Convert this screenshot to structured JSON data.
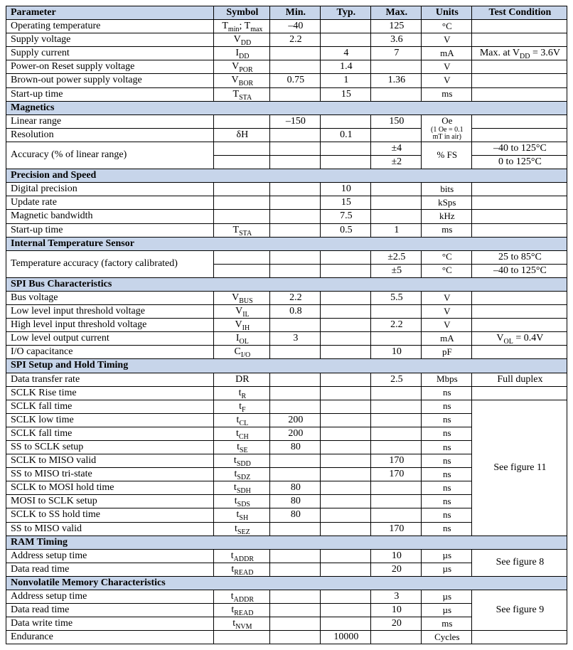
{
  "colors": {
    "header_bg": "#c7d5ea",
    "border": "#000000",
    "text": "#000000",
    "page_bg": "#ffffff"
  },
  "headers": {
    "parameter": "Parameter",
    "symbol": "Symbol",
    "min": "Min.",
    "typ": "Typ.",
    "max": "Max.",
    "units": "Units",
    "test": "Test Condition"
  },
  "sections": {
    "top": {
      "rows": [
        {
          "param": "Operating temperature",
          "sym": "T<sub>min</sub>; T<sub>max</sub>",
          "min": "–40",
          "typ": "",
          "max": "125",
          "units": "°C",
          "test": ""
        },
        {
          "param": "Supply voltage",
          "sym": "V<sub>DD</sub>",
          "min": "2.2",
          "typ": "",
          "max": "3.6",
          "units": "V",
          "test": ""
        },
        {
          "param": "Supply current",
          "sym": "I<sub>DD</sub>",
          "min": "",
          "typ": "4",
          "max": "7",
          "units": "mA",
          "test": "Max. at V<sub>DD</sub> = 3.6V"
        },
        {
          "param": "Power-on Reset supply voltage",
          "sym": "V<sub>POR</sub>",
          "min": "",
          "typ": "1.4",
          "max": "",
          "units": "V",
          "test": ""
        },
        {
          "param": "Brown-out power supply voltage",
          "sym": "V<sub>BOR</sub>",
          "min": "0.75",
          "typ": "1",
          "max": "1.36",
          "units": "V",
          "test": ""
        },
        {
          "param": "Start-up time",
          "sym": "T<sub>STA</sub>",
          "min": "",
          "typ": "15",
          "max": "",
          "units": "ms",
          "test": ""
        }
      ]
    },
    "magnetics": {
      "title": "Magnetics",
      "linear": {
        "param": "Linear range",
        "sym": "",
        "min": "–150",
        "typ": "",
        "max": "150",
        "units": "Oe",
        "note": "(1 Oe = 0.1 mT in air)",
        "test": ""
      },
      "resolution": {
        "param": "Resolution",
        "sym": "δH",
        "min": "",
        "typ": "0.1",
        "max": "",
        "test": ""
      },
      "accuracy": {
        "param": "Accuracy (% of linear range)",
        "units": "% FS",
        "rows": [
          {
            "max": "±4",
            "test": "–40 to 125°C"
          },
          {
            "max": "±2",
            "test": "0 to 125°C"
          }
        ]
      }
    },
    "precision": {
      "title": "Precision and Speed",
      "rows": [
        {
          "param": "Digital precision",
          "sym": "",
          "min": "",
          "typ": "10",
          "max": "",
          "units": "bits",
          "test": ""
        },
        {
          "param": "Update rate",
          "sym": "",
          "min": "",
          "typ": "15",
          "max": "",
          "units": "kSps",
          "test": ""
        },
        {
          "param": "Magnetic bandwidth",
          "sym": "",
          "min": "",
          "typ": "7.5",
          "max": "",
          "units": "kHz",
          "test": ""
        },
        {
          "param": "Start-up time",
          "sym": "T<sub>STA</sub>",
          "min": "",
          "typ": "0.5",
          "max": "1",
          "units": "ms",
          "test": ""
        }
      ]
    },
    "temp": {
      "title": "Internal Temperature Sensor",
      "param": "Temperature accuracy (factory calibrated)",
      "rows": [
        {
          "max": "±2.5",
          "units": "°C",
          "test": "25 to 85°C"
        },
        {
          "max": "±5",
          "units": "°C",
          "test": "–40 to 125°C"
        }
      ]
    },
    "spi_bus": {
      "title": "SPI Bus Characteristics",
      "rows": [
        {
          "param": "Bus voltage",
          "sym": "V<sub>BUS</sub>",
          "min": "2.2",
          "typ": "",
          "max": "5.5",
          "units": "V",
          "test": ""
        },
        {
          "param": "Low level input threshold voltage",
          "sym": "V<sub>IL</sub>",
          "min": "0.8",
          "typ": "",
          "max": "",
          "units": "V",
          "test": ""
        },
        {
          "param": "High level input threshold voltage",
          "sym": "V<sub>IH</sub>",
          "min": "",
          "typ": "",
          "max": "2.2",
          "units": "V",
          "test": ""
        },
        {
          "param": "Low level output current",
          "sym": "I<sub>OL</sub>",
          "min": "3",
          "typ": "",
          "max": "",
          "units": "mA",
          "test": "V<sub>OL</sub> = 0.4V"
        },
        {
          "param": "I/O capacitance",
          "sym": "C<sub>I/O</sub>",
          "min": "",
          "typ": "",
          "max": "10",
          "units": "pF",
          "test": ""
        }
      ]
    },
    "spi_timing": {
      "title": "SPI Setup and Hold Timing",
      "first": {
        "param": "Data transfer rate",
        "sym": "DR",
        "min": "",
        "typ": "",
        "max": "2.5",
        "units": "Mbps",
        "test": "Full duplex"
      },
      "second": {
        "param": "SCLK Rise time",
        "sym": "t<sub>R</sub>",
        "min": "",
        "typ": "",
        "max": "",
        "units": "ns",
        "test": ""
      },
      "group_test": "See figure 11",
      "group": [
        {
          "param": "SCLK fall time",
          "sym": "t<sub>F</sub>",
          "min": "",
          "typ": "",
          "max": "",
          "units": "ns"
        },
        {
          "param": "SCLK low time",
          "sym": "t<sub>CL</sub>",
          "min": "200",
          "typ": "",
          "max": "",
          "units": "ns"
        },
        {
          "param": "SCLK fall time",
          "sym": "t<sub>CH</sub>",
          "min": "200",
          "typ": "",
          "max": "",
          "units": "ns"
        },
        {
          "param": "SS to SCLK setup",
          "sym": "t<sub>SE</sub>",
          "min": "80",
          "typ": "",
          "max": "",
          "units": "ns"
        },
        {
          "param": "SCLK to MISO valid",
          "sym": "t<sub>SDD</sub>",
          "min": "",
          "typ": "",
          "max": "170",
          "units": "ns"
        },
        {
          "param": "SS to MISO tri-state",
          "sym": "t<sub>SDZ</sub>",
          "min": "",
          "typ": "",
          "max": "170",
          "units": "ns"
        },
        {
          "param": "SCLK to MOSI hold time",
          "sym": "t<sub>SDH</sub>",
          "min": "80",
          "typ": "",
          "max": "",
          "units": "ns"
        },
        {
          "param": "MOSI to SCLK setup",
          "sym": "t<sub>SDS</sub>",
          "min": "80",
          "typ": "",
          "max": "",
          "units": "ns"
        },
        {
          "param": "SCLK to SS hold time",
          "sym": "t<sub>SH</sub>",
          "min": "80",
          "typ": "",
          "max": "",
          "units": "ns"
        },
        {
          "param": "SS to MISO valid",
          "sym": "t<sub>SEZ</sub>",
          "min": "",
          "typ": "",
          "max": "170",
          "units": "ns"
        }
      ]
    },
    "ram": {
      "title": "RAM Timing",
      "test": "See figure 8",
      "rows": [
        {
          "param": "Address setup time",
          "sym": "t<sub>ADDR</sub>",
          "min": "",
          "typ": "",
          "max": "10",
          "units": "µs"
        },
        {
          "param": "Data read time",
          "sym": "t<sub>READ</sub>",
          "min": "",
          "typ": "",
          "max": "20",
          "units": "µs"
        }
      ]
    },
    "nvm": {
      "title": "Nonvolatile Memory Characteristics",
      "test": "See figure 9",
      "group": [
        {
          "param": "Address setup time",
          "sym": "t<sub>ADDR</sub>",
          "min": "",
          "typ": "",
          "max": "3",
          "units": "µs"
        },
        {
          "param": "Data read time",
          "sym": "t<sub>READ</sub>",
          "min": "",
          "typ": "",
          "max": "10",
          "units": "µs"
        },
        {
          "param": "Data write time",
          "sym": "t<sub>NVM</sub>",
          "min": "",
          "typ": "",
          "max": "20",
          "units": "ms"
        }
      ],
      "last": {
        "param": "Endurance",
        "sym": "",
        "min": "",
        "typ": "10000",
        "max": "",
        "units": "Cycles",
        "test": ""
      }
    }
  }
}
